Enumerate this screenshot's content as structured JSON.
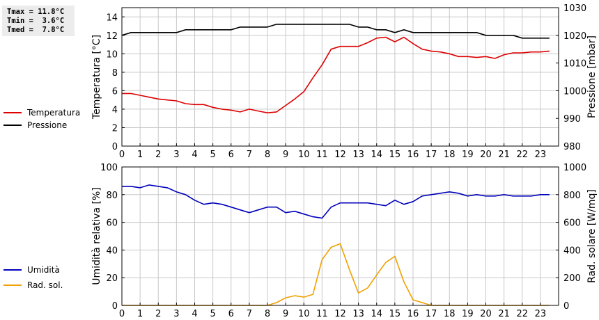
{
  "stats": {
    "tmax": "Tmax = 11.8°C",
    "tmin": "Tmin =  3.6°C",
    "tmed": "Tmed =  7.8°C"
  },
  "colors": {
    "temperature": "#dd0000",
    "pressure": "#000000",
    "humidity": "#0000bb",
    "solar": "#f0a000",
    "grid": "#c8c8c8"
  },
  "legend": {
    "top": [
      {
        "label": "Temperatura",
        "color": "#dd0000"
      },
      {
        "label": "Pressione",
        "color": "#000000"
      }
    ],
    "bottom": [
      {
        "label": "Umidità",
        "color": "#0000bb"
      },
      {
        "label": "Rad. sol.",
        "color": "#f0a000"
      }
    ]
  },
  "chart_data": [
    {
      "type": "line",
      "grid": true,
      "legend_position": "left",
      "xlabel": "",
      "xlim": [
        0,
        24
      ],
      "x_ticks": [
        0,
        1,
        2,
        3,
        4,
        5,
        6,
        7,
        8,
        9,
        10,
        11,
        12,
        13,
        14,
        15,
        16,
        17,
        18,
        19,
        20,
        21,
        22,
        23
      ],
      "ylabel": "Temperatura [°C]",
      "ylim": [
        0,
        15
      ],
      "y_ticks": [
        0,
        2,
        4,
        6,
        8,
        10,
        12,
        14
      ],
      "y2label": "Pressione [mbar]",
      "y2lim": [
        980,
        1030
      ],
      "y2_ticks": [
        980,
        990,
        1000,
        1010,
        1020,
        1030
      ],
      "series": [
        {
          "name": "Temperatura",
          "axis": "left",
          "x": [
            0,
            0.5,
            1,
            1.5,
            2,
            2.5,
            3,
            3.5,
            4,
            4.5,
            5,
            5.5,
            6,
            6.5,
            7,
            7.5,
            8,
            8.5,
            9,
            9.5,
            10,
            10.5,
            11,
            11.5,
            12,
            12.5,
            13,
            13.5,
            14,
            14.5,
            15,
            15.5,
            16,
            16.5,
            17,
            17.5,
            18,
            18.5,
            19,
            19.5,
            20,
            20.5,
            21,
            21.5,
            22,
            22.5,
            23,
            23.5
          ],
          "values": [
            5.7,
            5.7,
            5.5,
            5.3,
            5.1,
            5.0,
            4.9,
            4.6,
            4.5,
            4.5,
            4.2,
            4.0,
            3.9,
            3.7,
            4.0,
            3.8,
            3.6,
            3.7,
            4.4,
            5.1,
            5.9,
            7.4,
            8.8,
            10.5,
            10.8,
            10.8,
            10.8,
            11.2,
            11.7,
            11.8,
            11.3,
            11.8,
            11.1,
            10.5,
            10.3,
            10.2,
            10.0,
            9.7,
            9.7,
            9.6,
            9.7,
            9.5,
            9.9,
            10.1,
            10.1,
            10.2,
            10.2,
            10.3
          ]
        },
        {
          "name": "Pressione",
          "axis": "right",
          "x": [
            0,
            0.5,
            1,
            1.5,
            2,
            2.5,
            3,
            3.5,
            4,
            4.5,
            5,
            5.5,
            6,
            6.5,
            7,
            7.5,
            8,
            8.5,
            9,
            9.5,
            10,
            10.5,
            11,
            11.5,
            12,
            12.5,
            13,
            13.5,
            14,
            14.5,
            15,
            15.5,
            16,
            16.5,
            17,
            17.5,
            18,
            18.5,
            19,
            19.5,
            20,
            20.5,
            21,
            21.5,
            22,
            22.5,
            23,
            23.5
          ],
          "values": [
            1020,
            1021,
            1021,
            1021,
            1021,
            1021,
            1021,
            1022,
            1022,
            1022,
            1022,
            1022,
            1022,
            1023,
            1023,
            1023,
            1023,
            1024,
            1024,
            1024,
            1024,
            1024,
            1024,
            1024,
            1024,
            1024,
            1023,
            1023,
            1022,
            1022,
            1021,
            1022,
            1021,
            1021,
            1021,
            1021,
            1021,
            1021,
            1021,
            1021,
            1020,
            1020,
            1020,
            1020,
            1019,
            1019,
            1019,
            1019
          ]
        }
      ]
    },
    {
      "type": "line",
      "grid": true,
      "legend_position": "left",
      "xlabel": "",
      "xlim": [
        0,
        24
      ],
      "x_ticks": [
        0,
        1,
        2,
        3,
        4,
        5,
        6,
        7,
        8,
        9,
        10,
        11,
        12,
        13,
        14,
        15,
        16,
        17,
        18,
        19,
        20,
        21,
        22,
        23
      ],
      "ylabel": "Umidità relativa [%]",
      "ylim": [
        0,
        100
      ],
      "y_ticks": [
        0,
        20,
        40,
        60,
        80,
        100
      ],
      "y2label": "Rad. solare [W/mq]",
      "y2lim": [
        0,
        1000
      ],
      "y2_ticks": [
        0,
        200,
        400,
        600,
        800,
        1000
      ],
      "series": [
        {
          "name": "Umidità",
          "axis": "left",
          "x": [
            0,
            0.5,
            1,
            1.5,
            2,
            2.5,
            3,
            3.5,
            4,
            4.5,
            5,
            5.5,
            6,
            6.5,
            7,
            7.5,
            8,
            8.5,
            9,
            9.5,
            10,
            10.5,
            11,
            11.5,
            12,
            12.5,
            13,
            13.5,
            14,
            14.5,
            15,
            15.5,
            16,
            16.5,
            17,
            17.5,
            18,
            18.5,
            19,
            19.5,
            20,
            20.5,
            21,
            21.5,
            22,
            22.5,
            23,
            23.5
          ],
          "values": [
            86,
            86,
            85,
            87,
            86,
            85,
            82,
            80,
            76,
            73,
            74,
            73,
            71,
            69,
            67,
            69,
            71,
            71,
            67,
            68,
            66,
            64,
            63,
            71,
            74,
            74,
            74,
            74,
            73,
            72,
            76,
            73,
            75,
            79,
            80,
            81,
            82,
            81,
            79,
            80,
            79,
            79,
            80,
            79,
            79,
            79,
            80,
            80
          ]
        },
        {
          "name": "Rad. sol.",
          "axis": "right",
          "x": [
            0,
            0.5,
            1,
            1.5,
            2,
            2.5,
            3,
            3.5,
            4,
            4.5,
            5,
            5.5,
            6,
            6.5,
            7,
            7.5,
            8,
            8.5,
            9,
            9.5,
            10,
            10.5,
            11,
            11.5,
            12,
            12.5,
            13,
            13.5,
            14,
            14.5,
            15,
            15.5,
            16,
            16.5,
            17,
            17.5,
            18,
            18.5,
            19,
            19.5,
            20,
            20.5,
            21,
            21.5,
            22,
            22.5,
            23,
            23.5
          ],
          "values": [
            0,
            0,
            0,
            0,
            0,
            0,
            0,
            0,
            0,
            0,
            0,
            0,
            0,
            0,
            0,
            0,
            0,
            20,
            55,
            70,
            60,
            80,
            330,
            420,
            445,
            260,
            90,
            125,
            220,
            310,
            355,
            170,
            40,
            20,
            0,
            0,
            0,
            0,
            0,
            0,
            0,
            0,
            0,
            0,
            0,
            0,
            0,
            0
          ]
        }
      ]
    }
  ]
}
